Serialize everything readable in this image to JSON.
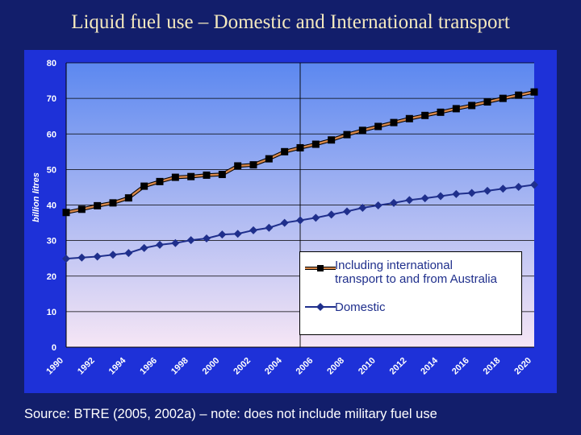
{
  "slide": {
    "title": "Liquid fuel use – Domestic and International transport",
    "source": "Source: BTRE (2005, 2002a) – note: does not include military fuel use"
  },
  "colors": {
    "background": "#121E6B",
    "plot_top": "#5C88F0",
    "plot_bottom": "#F6E6F5",
    "title": "#F3E8BE",
    "intl_line": "#D9884A",
    "domestic_line": "#1F2F8C",
    "marker_square": "#000000",
    "axis_text": "#FFFFFF"
  },
  "chart_data": {
    "type": "line",
    "title": "",
    "xlabel": "",
    "ylabel": "billion litres",
    "ylim": [
      0,
      80
    ],
    "yticks": [
      "0",
      "10",
      "20",
      "30",
      "40",
      "50",
      "60",
      "70",
      "80"
    ],
    "xlim": [
      1990,
      2020
    ],
    "xticks": [
      "1990",
      "1992",
      "1994",
      "1996",
      "1998",
      "2000",
      "2002",
      "2004",
      "2006",
      "2008",
      "2010",
      "2012",
      "2014",
      "2016",
      "2018",
      "2020"
    ],
    "projection_start": 2005,
    "x": [
      1990,
      1991,
      1992,
      1993,
      1994,
      1995,
      1996,
      1997,
      1998,
      1999,
      2000,
      2001,
      2002,
      2003,
      2004,
      2005,
      2006,
      2007,
      2008,
      2009,
      2010,
      2011,
      2012,
      2013,
      2014,
      2015,
      2016,
      2017,
      2018,
      2019,
      2020
    ],
    "series": [
      {
        "name": "Including international\ntransport to and from Australia",
        "marker": "square",
        "values": [
          37.9,
          38.8,
          39.8,
          40.6,
          42.0,
          45.3,
          46.6,
          47.8,
          48.0,
          48.4,
          48.6,
          51.0,
          51.3,
          53.0,
          55.0,
          56.1,
          57.1,
          58.3,
          59.8,
          61.0,
          62.1,
          63.2,
          64.3,
          65.2,
          66.1,
          67.1,
          68.0,
          69.0,
          70.0,
          70.9,
          71.8
        ]
      },
      {
        "name": "Domestic",
        "marker": "diamond",
        "values": [
          24.9,
          25.2,
          25.5,
          26.0,
          26.5,
          27.9,
          28.8,
          29.3,
          30.1,
          30.6,
          31.7,
          31.9,
          32.9,
          33.6,
          35.0,
          35.7,
          36.4,
          37.3,
          38.2,
          39.2,
          39.9,
          40.6,
          41.4,
          41.9,
          42.5,
          43.1,
          43.4,
          44.0,
          44.6,
          45.1,
          45.7
        ]
      }
    ],
    "legend": "inside-lower-right"
  }
}
